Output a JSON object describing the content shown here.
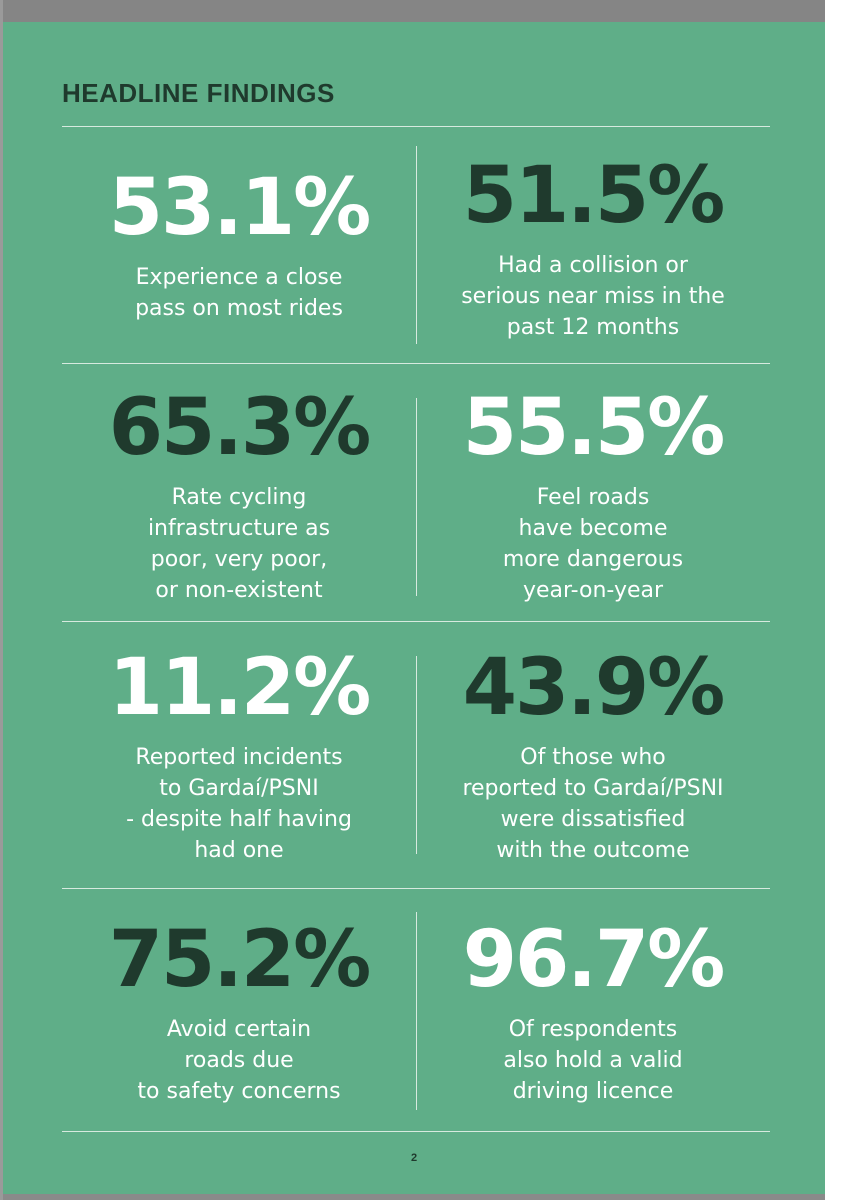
{
  "heading": "HEADLINE FINDINGS",
  "page_number": "2",
  "colors": {
    "page_green": "#5fae88",
    "dark_text": "#1f3a2d",
    "light_text": "#ffffff"
  },
  "findings": [
    {
      "value": "53.1%",
      "tone": "light",
      "text": "Experience a close\npass on most rides"
    },
    {
      "value": "51.5%",
      "tone": "dark",
      "text": "Had a collision or\nserious near miss in the\npast 12 months"
    },
    {
      "value": "65.3%",
      "tone": "dark",
      "text": "Rate cycling\ninfrastructure as\npoor, very poor,\nor non-existent"
    },
    {
      "value": "55.5%",
      "tone": "light",
      "text": "Feel roads\nhave become\nmore dangerous\nyear-on-year"
    },
    {
      "value": "11.2%",
      "tone": "light",
      "text": "Reported incidents\nto Gardaí/PSNI\n- despite half having\nhad one"
    },
    {
      "value": "43.9%",
      "tone": "dark",
      "text": "Of those who\nreported to Gardaí/PSNI\nwere dissatisfied\nwith the outcome"
    },
    {
      "value": "75.2%",
      "tone": "dark",
      "text": "Avoid certain\nroads due\nto safety concerns"
    },
    {
      "value": "96.7%",
      "tone": "light",
      "text": "Of respondents\nalso hold a valid\ndriving licence"
    }
  ]
}
